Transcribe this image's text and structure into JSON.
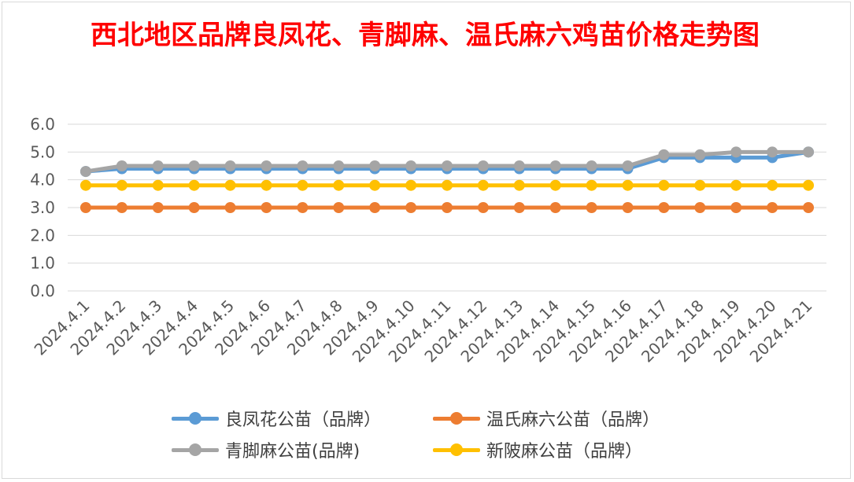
{
  "chart_data": {
    "type": "line",
    "title": "西北地区品牌良凤花、青脚麻、温氏麻六鸡苗价格走势图",
    "xlabel": "",
    "ylabel": "",
    "ylim": [
      0,
      6
    ],
    "yticks": [
      "0.0",
      "1.0",
      "2.0",
      "3.0",
      "4.0",
      "5.0",
      "6.0"
    ],
    "grid": true,
    "legend_position": "bottom",
    "categories": [
      "2024.4.1",
      "2024.4.2",
      "2024.4.3",
      "2024.4.4",
      "2024.4.5",
      "2024.4.6",
      "2024.4.7",
      "2024.4.8",
      "2024.4.9",
      "2024.4.10",
      "2024.4.11",
      "2024.4.12",
      "2024.4.13",
      "2024.4.14",
      "2024.4.15",
      "2024.4.16",
      "2024.4.17",
      "2024.4.18",
      "2024.4.19",
      "2024.4.20",
      "2024.4.21"
    ],
    "series": [
      {
        "name": "良凤花公苗（品牌）",
        "color": "#5b9bd5",
        "values": [
          4.3,
          4.4,
          4.4,
          4.4,
          4.4,
          4.4,
          4.4,
          4.4,
          4.4,
          4.4,
          4.4,
          4.4,
          4.4,
          4.4,
          4.4,
          4.4,
          4.8,
          4.8,
          4.8,
          4.8,
          5.0
        ]
      },
      {
        "name": "温氏麻六公苗（品牌）",
        "color": "#ed7d31",
        "values": [
          3.0,
          3.0,
          3.0,
          3.0,
          3.0,
          3.0,
          3.0,
          3.0,
          3.0,
          3.0,
          3.0,
          3.0,
          3.0,
          3.0,
          3.0,
          3.0,
          3.0,
          3.0,
          3.0,
          3.0,
          3.0
        ]
      },
      {
        "name": "青脚麻公苗(品牌)",
        "color": "#a5a5a5",
        "values": [
          4.3,
          4.5,
          4.5,
          4.5,
          4.5,
          4.5,
          4.5,
          4.5,
          4.5,
          4.5,
          4.5,
          4.5,
          4.5,
          4.5,
          4.5,
          4.5,
          4.9,
          4.9,
          5.0,
          5.0,
          5.0
        ]
      },
      {
        "name": "新陂麻公苗（品牌）",
        "color": "#ffc000",
        "values": [
          3.8,
          3.8,
          3.8,
          3.8,
          3.8,
          3.8,
          3.8,
          3.8,
          3.8,
          3.8,
          3.8,
          3.8,
          3.8,
          3.8,
          3.8,
          3.8,
          3.8,
          3.8,
          3.8,
          3.8,
          3.8
        ]
      }
    ],
    "draw_order": [
      3,
      1,
      0,
      2
    ]
  }
}
